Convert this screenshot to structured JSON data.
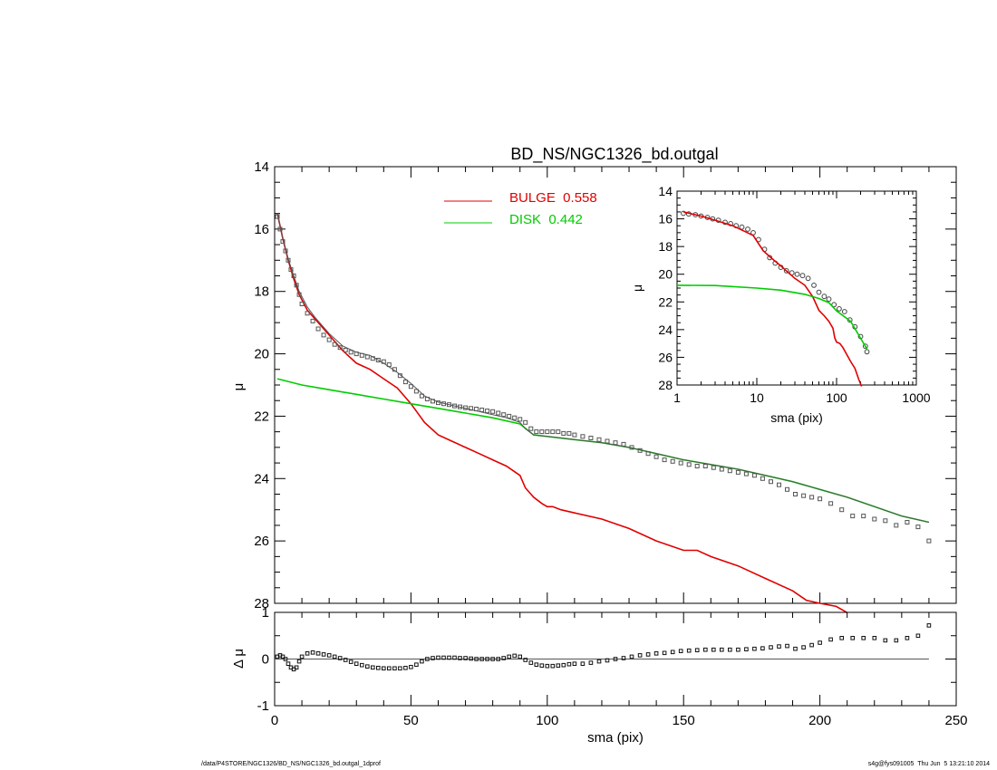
{
  "chart_data": [
    {
      "type": "line",
      "title": "BD_NS/NGC1326_bd.outgal",
      "xlabel": "",
      "ylabel": "μ",
      "xlim": [
        0,
        250
      ],
      "ylim": [
        28,
        14
      ],
      "y_inverted": true,
      "yticks": [
        14,
        16,
        18,
        20,
        22,
        24,
        26,
        28
      ],
      "legend": [
        {
          "label": "BULGE  0.558",
          "color": "#e00000"
        },
        {
          "label": "DISK  0.442",
          "color": "#00cc00"
        }
      ],
      "series": [
        {
          "name": "BULGE",
          "color": "#e00000",
          "style": "line",
          "x": [
            1,
            3,
            5,
            7,
            9,
            12,
            15,
            20,
            25,
            30,
            35,
            40,
            45,
            50,
            55,
            60,
            65,
            70,
            75,
            80,
            85,
            90,
            92,
            95,
            98,
            100,
            102,
            105,
            110,
            120,
            130,
            140,
            150,
            155,
            160,
            170,
            180,
            190,
            195,
            200,
            206,
            210
          ],
          "y": [
            15.5,
            16.3,
            17.0,
            17.6,
            18.1,
            18.6,
            18.9,
            19.4,
            19.9,
            20.3,
            20.5,
            20.8,
            21.1,
            21.6,
            22.2,
            22.6,
            22.8,
            23.0,
            23.2,
            23.4,
            23.6,
            23.9,
            24.3,
            24.6,
            24.8,
            24.9,
            24.9,
            25.0,
            25.1,
            25.3,
            25.6,
            26.0,
            26.3,
            26.3,
            26.5,
            26.8,
            27.2,
            27.6,
            27.9,
            28.0,
            28.1,
            28.3
          ]
        },
        {
          "name": "DISK",
          "color": "#00cc00",
          "style": "line",
          "x": [
            1,
            10,
            20,
            30,
            40,
            50,
            60,
            70,
            80,
            90,
            95,
            100,
            110,
            120,
            130,
            140,
            150,
            160,
            170,
            180,
            190,
            200,
            210,
            220,
            230,
            240
          ],
          "y": [
            20.8,
            21.0,
            21.15,
            21.3,
            21.45,
            21.6,
            21.75,
            21.9,
            22.05,
            22.25,
            22.6,
            22.65,
            22.75,
            22.85,
            23.0,
            23.2,
            23.4,
            23.55,
            23.7,
            23.9,
            24.1,
            24.35,
            24.6,
            24.9,
            25.2,
            25.4
          ]
        },
        {
          "name": "MODEL",
          "color": "#555555",
          "style": "line",
          "x": [
            1,
            3,
            5,
            7,
            9,
            12,
            15,
            20,
            25,
            30,
            35,
            40,
            45,
            50,
            55,
            60,
            65,
            70,
            75,
            80,
            85,
            90,
            92,
            95,
            100,
            110,
            120,
            130,
            140,
            150,
            160,
            170,
            180,
            190,
            200,
            210,
            220,
            230,
            240
          ],
          "y": [
            15.5,
            16.3,
            16.95,
            17.5,
            18.0,
            18.5,
            18.85,
            19.35,
            19.75,
            19.95,
            20.05,
            20.3,
            20.6,
            20.95,
            21.35,
            21.55,
            21.65,
            21.75,
            21.85,
            21.95,
            22.05,
            22.2,
            22.4,
            22.6,
            22.65,
            22.75,
            22.85,
            23.0,
            23.2,
            23.4,
            23.55,
            23.7,
            23.9,
            24.1,
            24.35,
            24.6,
            24.9,
            25.2,
            25.4
          ]
        },
        {
          "name": "DATA",
          "color": "#555555",
          "style": "square",
          "x": [
            1,
            2,
            3,
            4,
            5,
            6,
            7,
            8,
            9,
            10,
            12,
            14,
            16,
            18,
            20,
            22,
            24,
            26,
            28,
            30,
            32,
            34,
            36,
            38,
            40,
            42,
            44,
            46,
            48,
            50,
            52,
            54,
            56,
            58,
            60,
            62,
            64,
            66,
            68,
            70,
            72,
            74,
            76,
            78,
            80,
            82,
            84,
            86,
            88,
            90,
            92,
            94,
            96,
            98,
            100,
            102,
            104,
            106,
            108,
            110,
            113,
            116,
            119,
            122,
            125,
            128,
            131,
            134,
            137,
            140,
            143,
            146,
            149,
            152,
            155,
            158,
            161,
            164,
            167,
            170,
            173,
            176,
            179,
            182,
            185,
            188,
            191,
            194,
            197,
            200,
            204,
            208,
            212,
            216,
            220,
            224,
            228,
            232,
            236,
            240
          ],
          "y": [
            15.6,
            16.0,
            16.4,
            16.7,
            17.0,
            17.3,
            17.5,
            17.8,
            18.1,
            18.4,
            18.7,
            18.95,
            19.2,
            19.4,
            19.55,
            19.7,
            19.8,
            19.88,
            19.95,
            20.0,
            20.05,
            20.1,
            20.15,
            20.2,
            20.25,
            20.35,
            20.5,
            20.7,
            20.9,
            21.05,
            21.2,
            21.35,
            21.45,
            21.52,
            21.57,
            21.6,
            21.63,
            21.67,
            21.7,
            21.73,
            21.75,
            21.77,
            21.8,
            21.83,
            21.85,
            21.9,
            21.95,
            22.0,
            22.05,
            22.1,
            22.2,
            22.4,
            22.5,
            22.5,
            22.5,
            22.5,
            22.5,
            22.55,
            22.55,
            22.6,
            22.65,
            22.7,
            22.75,
            22.8,
            22.85,
            22.9,
            23.0,
            23.1,
            23.2,
            23.3,
            23.4,
            23.45,
            23.5,
            23.55,
            23.6,
            23.6,
            23.65,
            23.7,
            23.75,
            23.8,
            23.85,
            23.9,
            24.0,
            24.1,
            24.2,
            24.35,
            24.5,
            24.55,
            24.6,
            24.65,
            24.8,
            25.0,
            25.2,
            25.2,
            25.3,
            25.35,
            25.5,
            25.4,
            25.55,
            26.0
          ]
        }
      ]
    },
    {
      "type": "line",
      "xlabel": "sma (pix)",
      "ylabel": "Δ μ",
      "xlim": [
        0,
        250
      ],
      "ylim": [
        -1,
        1
      ],
      "xticks": [
        0,
        50,
        100,
        150,
        200,
        250
      ],
      "yticks": [
        -1,
        0,
        1
      ],
      "series": [
        {
          "name": "ZERO",
          "color": "#555555",
          "style": "line",
          "x": [
            0,
            240
          ],
          "y": [
            0,
            0
          ]
        },
        {
          "name": "RESIDUAL",
          "color": "#111111",
          "style": "square",
          "x": [
            1,
            2,
            3,
            4,
            5,
            6,
            7,
            8,
            9,
            10,
            12,
            14,
            16,
            18,
            20,
            22,
            24,
            26,
            28,
            30,
            32,
            34,
            36,
            38,
            40,
            42,
            44,
            46,
            48,
            50,
            52,
            54,
            56,
            58,
            60,
            62,
            64,
            66,
            68,
            70,
            72,
            74,
            76,
            78,
            80,
            82,
            84,
            86,
            88,
            90,
            92,
            94,
            96,
            98,
            100,
            102,
            104,
            106,
            108,
            110,
            113,
            116,
            119,
            122,
            125,
            128,
            131,
            134,
            137,
            140,
            143,
            146,
            149,
            152,
            155,
            158,
            161,
            164,
            167,
            170,
            173,
            176,
            179,
            182,
            185,
            188,
            191,
            194,
            197,
            200,
            204,
            208,
            212,
            216,
            220,
            224,
            228,
            232,
            236,
            240
          ],
          "y": [
            0.05,
            0.08,
            0.05,
            0.0,
            -0.1,
            -0.18,
            -0.22,
            -0.18,
            -0.05,
            0.05,
            0.12,
            0.14,
            0.12,
            0.1,
            0.08,
            0.05,
            0.02,
            -0.02,
            -0.06,
            -0.1,
            -0.13,
            -0.16,
            -0.18,
            -0.19,
            -0.2,
            -0.2,
            -0.2,
            -0.2,
            -0.19,
            -0.17,
            -0.12,
            -0.05,
            0.0,
            0.02,
            0.03,
            0.03,
            0.03,
            0.03,
            0.02,
            0.02,
            0.01,
            0.0,
            0.0,
            0.0,
            0.0,
            0.0,
            0.02,
            0.05,
            0.07,
            0.05,
            -0.02,
            -0.08,
            -0.12,
            -0.14,
            -0.15,
            -0.15,
            -0.14,
            -0.13,
            -0.11,
            -0.1,
            -0.1,
            -0.08,
            -0.05,
            -0.03,
            0.0,
            0.02,
            0.05,
            0.08,
            0.1,
            0.12,
            0.13,
            0.15,
            0.17,
            0.18,
            0.19,
            0.2,
            0.2,
            0.2,
            0.2,
            0.2,
            0.21,
            0.22,
            0.23,
            0.25,
            0.27,
            0.28,
            0.22,
            0.25,
            0.3,
            0.35,
            0.42,
            0.45,
            0.45,
            0.45,
            0.45,
            0.4,
            0.4,
            0.45,
            0.5,
            0.72
          ]
        }
      ]
    },
    {
      "type": "line",
      "xlabel": "sma (pix)",
      "ylabel": "μ",
      "x_scale": "log",
      "xlim": [
        1,
        1000
      ],
      "ylim": [
        28,
        14
      ],
      "xticks": [
        1,
        10,
        100,
        1000
      ],
      "yticks": [
        14,
        16,
        18,
        20,
        22,
        24,
        26,
        28
      ],
      "series": [
        {
          "name": "DATA",
          "color": "#444444",
          "style": "circle",
          "x": [
            1.2,
            1.4,
            1.7,
            2,
            2.4,
            2.8,
            3.3,
            4,
            4.7,
            5.5,
            6.5,
            7.7,
            9,
            10.5,
            12.5,
            14.5,
            17,
            20,
            23.5,
            27.5,
            32,
            37.5,
            44,
            52,
            60,
            70,
            80,
            93,
            108,
            126,
            147,
            170,
            200,
            230,
            240
          ],
          "y": [
            15.6,
            15.65,
            15.7,
            15.8,
            15.9,
            16.0,
            16.1,
            16.25,
            16.35,
            16.5,
            16.6,
            16.75,
            17.0,
            17.5,
            18.2,
            18.8,
            19.2,
            19.5,
            19.75,
            19.9,
            20.0,
            20.1,
            20.3,
            20.8,
            21.3,
            21.6,
            21.8,
            22.2,
            22.5,
            22.7,
            23.3,
            23.8,
            24.5,
            25.2,
            25.6
          ]
        },
        {
          "name": "BULGE",
          "color": "#e00000",
          "style": "line",
          "x": [
            1.2,
            2,
            3,
            5,
            7,
            9,
            12,
            15,
            20,
            25,
            30,
            40,
            50,
            60,
            70,
            80,
            90,
            95,
            100,
            110,
            120,
            150,
            170,
            190,
            206
          ],
          "y": [
            15.5,
            15.8,
            16.1,
            16.5,
            16.9,
            17.2,
            18.3,
            18.8,
            19.4,
            19.9,
            20.3,
            20.8,
            21.6,
            22.6,
            23.0,
            23.4,
            23.9,
            24.6,
            24.9,
            25.0,
            25.3,
            26.3,
            26.8,
            27.6,
            28.1
          ]
        },
        {
          "name": "DISK",
          "color": "#00cc00",
          "style": "line",
          "x": [
            1,
            3,
            10,
            20,
            40,
            60,
            80,
            100,
            150,
            240
          ],
          "y": [
            20.8,
            20.82,
            21.0,
            21.15,
            21.45,
            21.75,
            22.05,
            22.65,
            23.4,
            25.4
          ]
        }
      ]
    }
  ],
  "footer": {
    "path": "/data/P4STORE/NGC1326/BD_NS/NGC1326_bd.outgal_1dprof",
    "stamp": "s4g@fys091005  Thu Jun  5 13:21:10 2014"
  }
}
